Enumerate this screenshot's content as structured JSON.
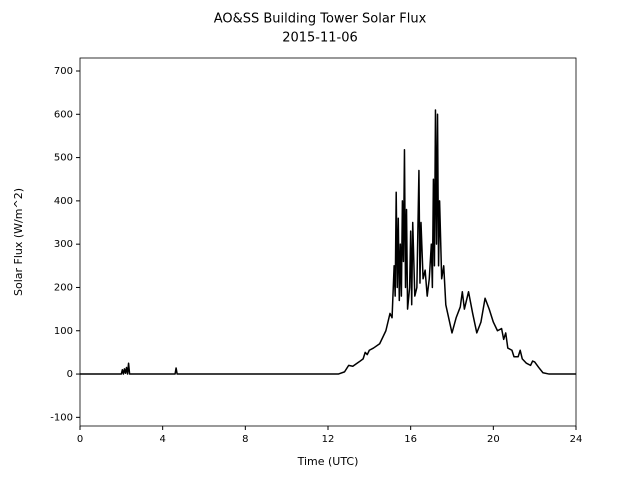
{
  "chart_data": {
    "type": "line",
    "title": "AO&SS Building Tower Solar Flux",
    "subtitle": "2015-11-06",
    "x_label": "Time (UTC)",
    "y_label": "Solar Flux (W/m^2)",
    "x": [
      0,
      2.0,
      2.05,
      2.1,
      2.15,
      2.2,
      2.25,
      2.3,
      2.35,
      2.4,
      4.6,
      4.65,
      4.7,
      12.5,
      12.8,
      13.0,
      13.2,
      13.5,
      13.7,
      13.8,
      13.9,
      14.0,
      14.2,
      14.5,
      14.8,
      15.0,
      15.1,
      15.2,
      15.25,
      15.3,
      15.35,
      15.4,
      15.45,
      15.5,
      15.55,
      15.6,
      15.65,
      15.7,
      15.75,
      15.8,
      15.85,
      15.95,
      16.0,
      16.05,
      16.1,
      16.2,
      16.3,
      16.4,
      16.45,
      16.5,
      16.6,
      16.7,
      16.8,
      16.9,
      17.0,
      17.05,
      17.1,
      17.15,
      17.2,
      17.25,
      17.3,
      17.35,
      17.4,
      17.5,
      17.6,
      17.7,
      18.0,
      18.2,
      18.4,
      18.5,
      18.6,
      18.8,
      19.0,
      19.2,
      19.4,
      19.6,
      19.8,
      20.0,
      20.2,
      20.4,
      20.5,
      20.6,
      20.7,
      20.9,
      21.0,
      21.2,
      21.3,
      21.4,
      21.6,
      21.8,
      21.9,
      22.0,
      22.2,
      22.4,
      22.7,
      24
    ],
    "series": [
      {
        "name": "Solar Flux",
        "color": "#000000",
        "values": [
          0,
          0,
          10,
          0,
          12,
          2,
          15,
          0,
          25,
          0,
          0,
          14,
          0,
          0,
          5,
          20,
          18,
          28,
          35,
          50,
          45,
          55,
          60,
          70,
          100,
          140,
          130,
          250,
          180,
          420,
          200,
          360,
          170,
          300,
          180,
          400,
          260,
          518,
          200,
          380,
          150,
          200,
          330,
          160,
          350,
          180,
          200,
          470,
          210,
          350,
          220,
          240,
          180,
          220,
          300,
          200,
          450,
          250,
          610,
          300,
          600,
          250,
          400,
          220,
          250,
          160,
          95,
          130,
          155,
          190,
          150,
          190,
          140,
          95,
          120,
          175,
          150,
          120,
          100,
          105,
          80,
          95,
          60,
          55,
          40,
          40,
          55,
          35,
          25,
          20,
          30,
          28,
          15,
          3,
          0,
          0
        ]
      }
    ],
    "xlim": [
      0,
      24
    ],
    "xticks": [
      0,
      4,
      8,
      12,
      16,
      20,
      24
    ],
    "ylim": [
      -120,
      730
    ],
    "yticks": [
      -100,
      0,
      100,
      200,
      300,
      400,
      500,
      600,
      700
    ],
    "grid": false
  }
}
